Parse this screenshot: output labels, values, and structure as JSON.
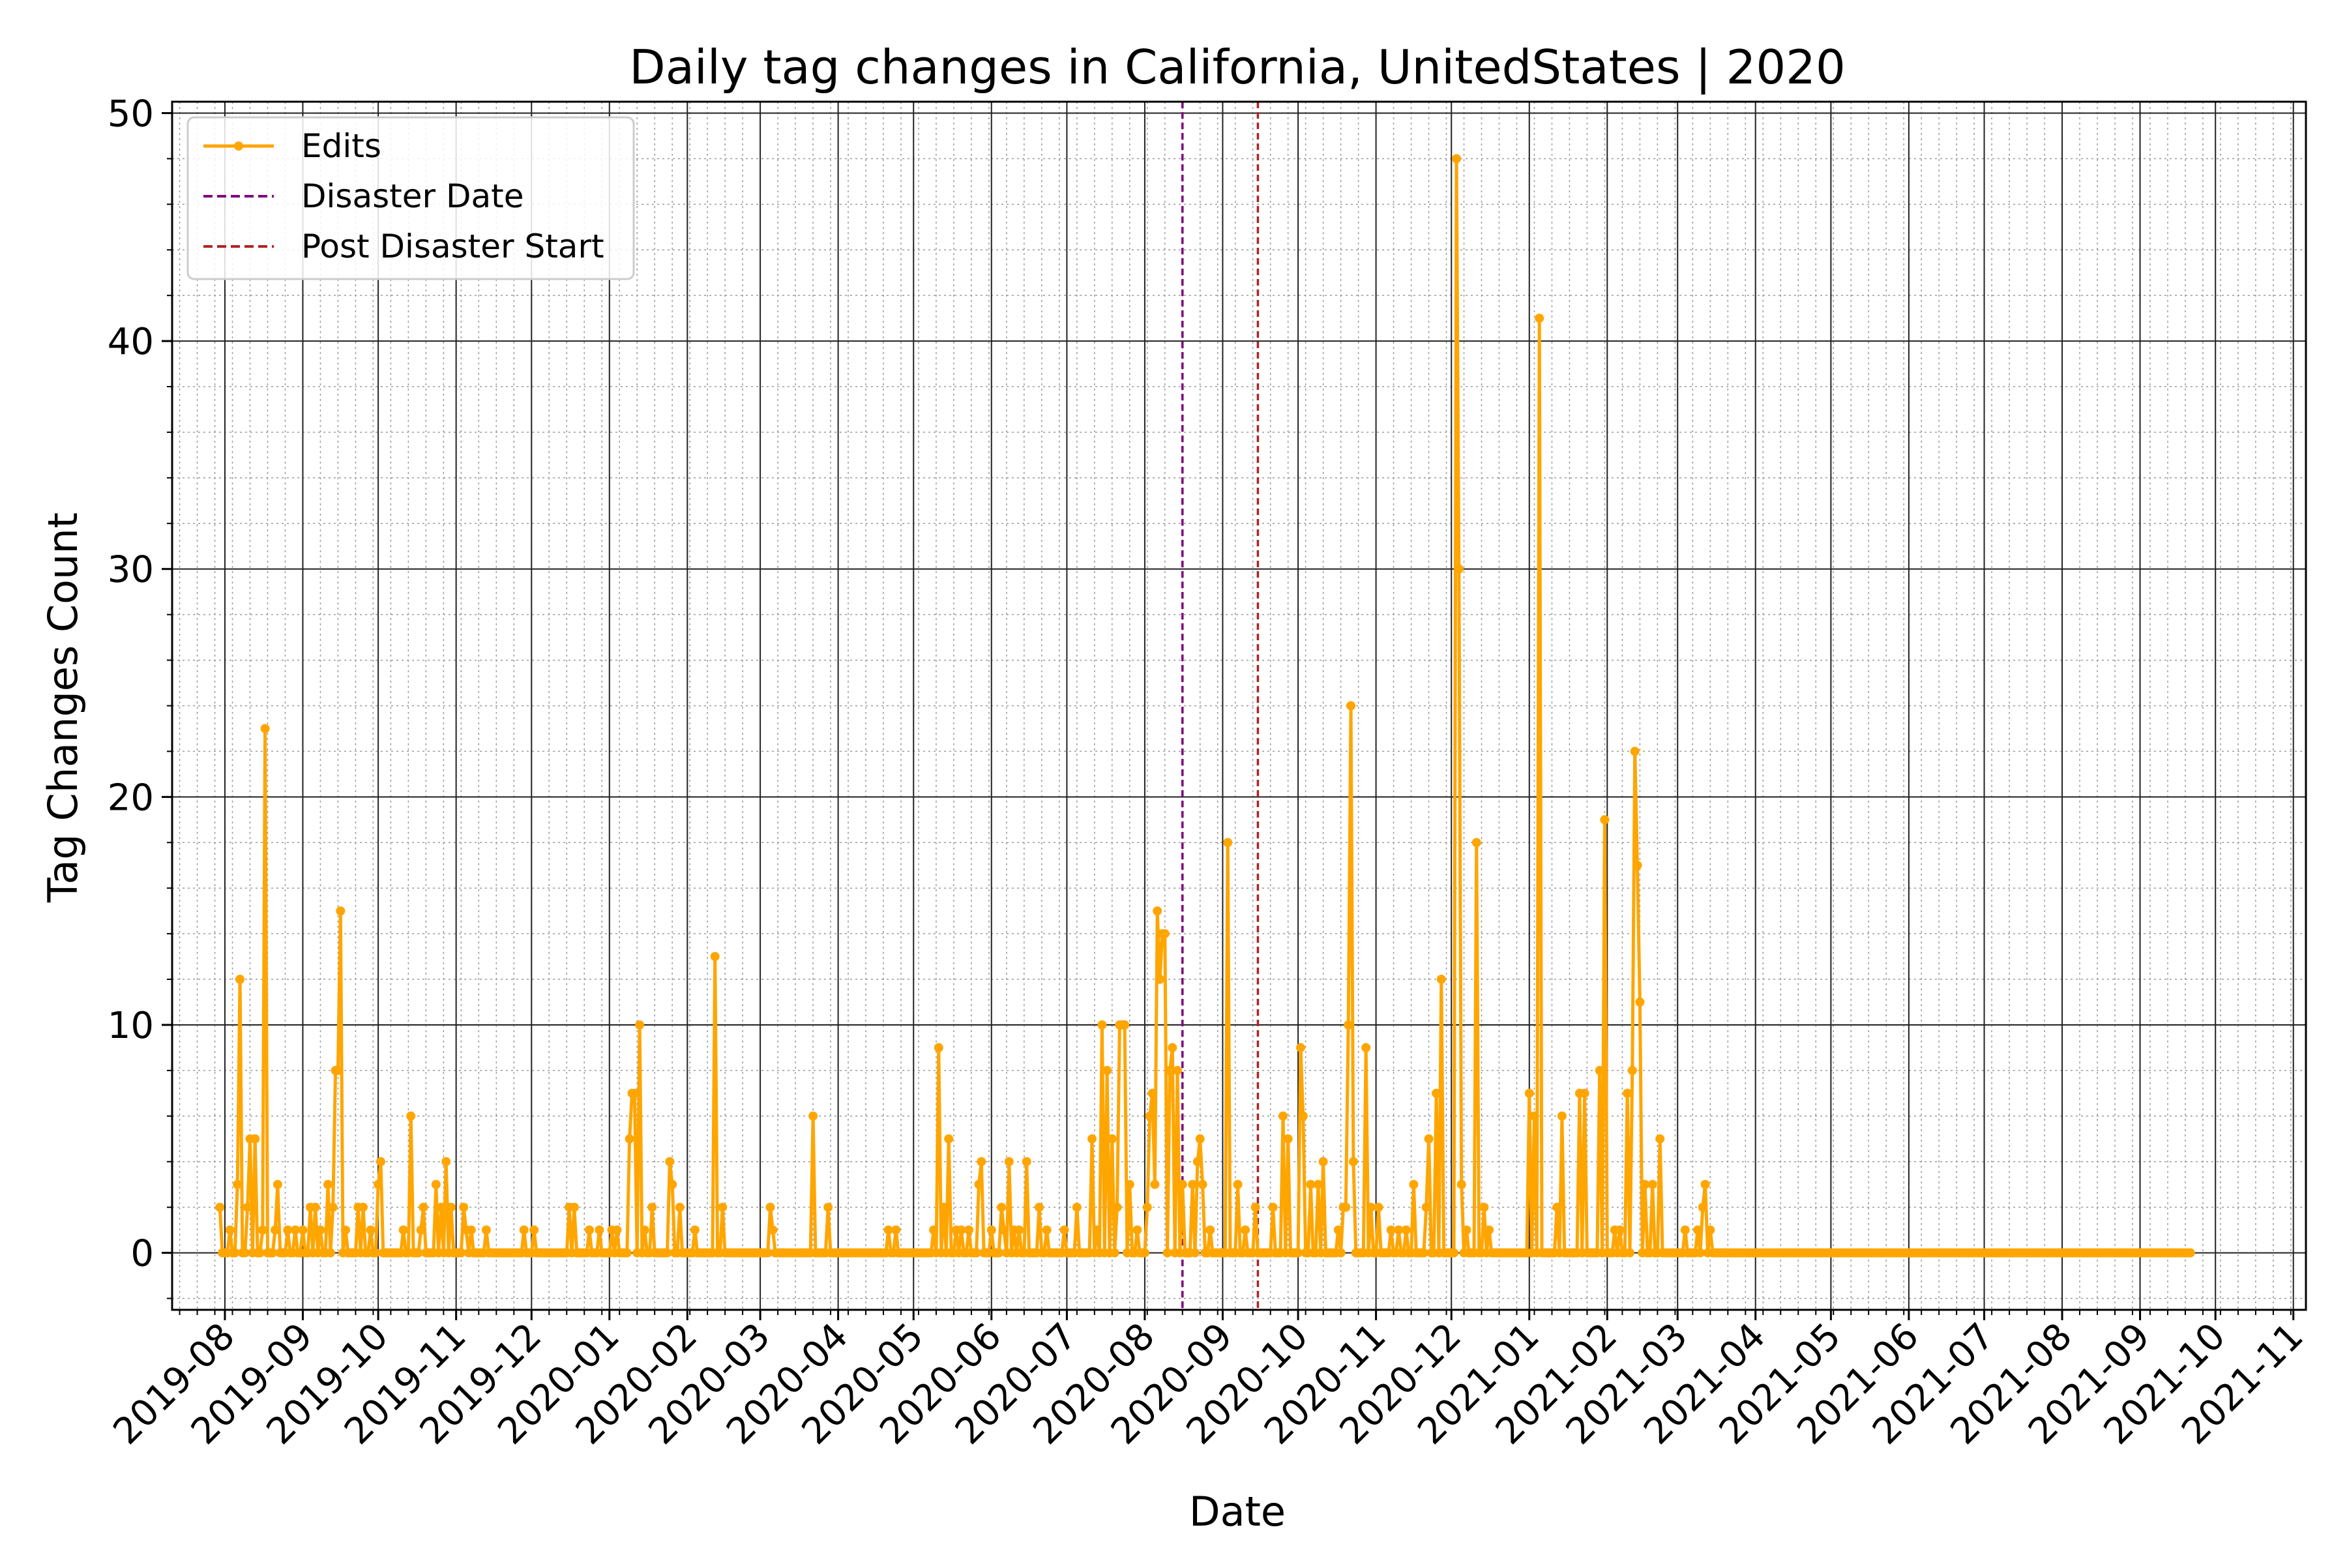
{
  "chart_data": {
    "type": "line",
    "title": "Daily tag changes in California, UnitedStates | 2020",
    "xlabel": "Date",
    "ylabel": "Tag Changes Count",
    "ylim": [
      -2.5,
      50.5
    ],
    "xlim": [
      "2019-07-11",
      "2021-11-06"
    ],
    "grid": true,
    "legend_position": "top-left",
    "y_ticks": [
      0,
      10,
      20,
      30,
      40,
      50
    ],
    "x_ticks": [
      "2019-08",
      "2019-09",
      "2019-10",
      "2019-11",
      "2019-12",
      "2020-01",
      "2020-02",
      "2020-03",
      "2020-04",
      "2020-05",
      "2020-06",
      "2020-07",
      "2020-08",
      "2020-09",
      "2020-10",
      "2020-11",
      "2020-12",
      "2021-01",
      "2021-02",
      "2021-03",
      "2021-04",
      "2021-05",
      "2021-06",
      "2021-07",
      "2021-08",
      "2021-09",
      "2021-10",
      "2021-11"
    ],
    "legend": [
      {
        "label": "Edits",
        "color": "#ffa500",
        "style": "line-marker"
      },
      {
        "label": "Disaster Date",
        "color": "#800080",
        "style": "dashed"
      },
      {
        "label": "Post Disaster Start",
        "color": "#b22222",
        "style": "dashed"
      }
    ],
    "vlines": [
      {
        "name": "Disaster Date",
        "x": "2020-08-16",
        "color": "#800080"
      },
      {
        "name": "Post Disaster Start",
        "x": "2020-09-15",
        "color": "#b22222"
      }
    ],
    "series": [
      {
        "name": "Edits",
        "color": "#ffa500",
        "start_date": "2019-07-30",
        "end_date": "2021-09-21",
        "nonzero_points": [
          [
            "2019-07-30",
            2
          ],
          [
            "2019-08-03",
            1
          ],
          [
            "2019-08-06",
            3
          ],
          [
            "2019-08-07",
            12
          ],
          [
            "2019-08-10",
            2
          ],
          [
            "2019-08-11",
            5
          ],
          [
            "2019-08-13",
            5
          ],
          [
            "2019-08-16",
            1
          ],
          [
            "2019-08-17",
            23
          ],
          [
            "2019-08-21",
            1
          ],
          [
            "2019-08-22",
            3
          ],
          [
            "2019-08-26",
            1
          ],
          [
            "2019-08-29",
            1
          ],
          [
            "2019-09-01",
            1
          ],
          [
            "2019-09-04",
            2
          ],
          [
            "2019-09-06",
            2
          ],
          [
            "2019-09-08",
            1
          ],
          [
            "2019-09-11",
            3
          ],
          [
            "2019-09-13",
            2
          ],
          [
            "2019-09-14",
            8
          ],
          [
            "2019-09-15",
            8
          ],
          [
            "2019-09-16",
            15
          ],
          [
            "2019-09-18",
            1
          ],
          [
            "2019-09-23",
            2
          ],
          [
            "2019-09-25",
            2
          ],
          [
            "2019-09-28",
            1
          ],
          [
            "2019-10-01",
            3
          ],
          [
            "2019-10-02",
            4
          ],
          [
            "2019-10-11",
            1
          ],
          [
            "2019-10-14",
            6
          ],
          [
            "2019-10-18",
            1
          ],
          [
            "2019-10-19",
            2
          ],
          [
            "2019-10-24",
            3
          ],
          [
            "2019-10-26",
            2
          ],
          [
            "2019-10-28",
            4
          ],
          [
            "2019-10-30",
            2
          ],
          [
            "2019-11-04",
            2
          ],
          [
            "2019-11-05",
            1
          ],
          [
            "2019-11-07",
            1
          ],
          [
            "2019-11-13",
            1
          ],
          [
            "2019-11-28",
            1
          ],
          [
            "2019-12-02",
            1
          ],
          [
            "2019-12-16",
            2
          ],
          [
            "2019-12-18",
            2
          ],
          [
            "2019-12-24",
            1
          ],
          [
            "2019-12-28",
            1
          ],
          [
            "2020-01-02",
            1
          ],
          [
            "2020-01-04",
            1
          ],
          [
            "2020-01-09",
            5
          ],
          [
            "2020-01-10",
            7
          ],
          [
            "2020-01-11",
            7
          ],
          [
            "2020-01-13",
            10
          ],
          [
            "2020-01-15",
            1
          ],
          [
            "2020-01-18",
            2
          ],
          [
            "2020-01-25",
            4
          ],
          [
            "2020-01-26",
            3
          ],
          [
            "2020-01-29",
            2
          ],
          [
            "2020-02-04",
            1
          ],
          [
            "2020-02-12",
            13
          ],
          [
            "2020-02-15",
            2
          ],
          [
            "2020-03-05",
            2
          ],
          [
            "2020-03-06",
            1
          ],
          [
            "2020-03-22",
            6
          ],
          [
            "2020-03-28",
            2
          ],
          [
            "2020-04-21",
            1
          ],
          [
            "2020-04-24",
            1
          ],
          [
            "2020-05-09",
            1
          ],
          [
            "2020-05-11",
            9
          ],
          [
            "2020-05-13",
            2
          ],
          [
            "2020-05-15",
            5
          ],
          [
            "2020-05-18",
            1
          ],
          [
            "2020-05-20",
            1
          ],
          [
            "2020-05-23",
            1
          ],
          [
            "2020-05-27",
            3
          ],
          [
            "2020-05-28",
            4
          ],
          [
            "2020-06-01",
            1
          ],
          [
            "2020-06-05",
            2
          ],
          [
            "2020-06-06",
            1
          ],
          [
            "2020-06-08",
            4
          ],
          [
            "2020-06-10",
            1
          ],
          [
            "2020-06-12",
            1
          ],
          [
            "2020-06-15",
            4
          ],
          [
            "2020-06-20",
            2
          ],
          [
            "2020-06-23",
            1
          ],
          [
            "2020-06-30",
            1
          ],
          [
            "2020-07-05",
            2
          ],
          [
            "2020-07-11",
            5
          ],
          [
            "2020-07-13",
            1
          ],
          [
            "2020-07-15",
            10
          ],
          [
            "2020-07-17",
            8
          ],
          [
            "2020-07-19",
            5
          ],
          [
            "2020-07-21",
            2
          ],
          [
            "2020-07-22",
            10
          ],
          [
            "2020-07-23",
            10
          ],
          [
            "2020-07-24",
            10
          ],
          [
            "2020-07-26",
            3
          ],
          [
            "2020-07-29",
            1
          ],
          [
            "2020-08-02",
            2
          ],
          [
            "2020-08-03",
            6
          ],
          [
            "2020-08-04",
            7
          ],
          [
            "2020-08-05",
            3
          ],
          [
            "2020-08-06",
            15
          ],
          [
            "2020-08-07",
            12
          ],
          [
            "2020-08-08",
            14
          ],
          [
            "2020-08-09",
            14
          ],
          [
            "2020-08-11",
            8
          ],
          [
            "2020-08-12",
            9
          ],
          [
            "2020-08-14",
            8
          ],
          [
            "2020-08-16",
            3
          ],
          [
            "2020-08-20",
            3
          ],
          [
            "2020-08-22",
            4
          ],
          [
            "2020-08-23",
            5
          ],
          [
            "2020-08-24",
            3
          ],
          [
            "2020-08-27",
            1
          ],
          [
            "2020-09-03",
            18
          ],
          [
            "2020-09-07",
            3
          ],
          [
            "2020-09-10",
            1
          ],
          [
            "2020-09-14",
            2
          ],
          [
            "2020-09-21",
            2
          ],
          [
            "2020-09-25",
            6
          ],
          [
            "2020-09-27",
            5
          ],
          [
            "2020-10-02",
            9
          ],
          [
            "2020-10-03",
            6
          ],
          [
            "2020-10-06",
            3
          ],
          [
            "2020-10-09",
            3
          ],
          [
            "2020-10-11",
            4
          ],
          [
            "2020-10-17",
            1
          ],
          [
            "2020-10-19",
            2
          ],
          [
            "2020-10-20",
            2
          ],
          [
            "2020-10-21",
            10
          ],
          [
            "2020-10-22",
            24
          ],
          [
            "2020-10-23",
            4
          ],
          [
            "2020-10-28",
            9
          ],
          [
            "2020-10-30",
            2
          ],
          [
            "2020-11-02",
            2
          ],
          [
            "2020-11-07",
            1
          ],
          [
            "2020-11-10",
            1
          ],
          [
            "2020-11-13",
            1
          ],
          [
            "2020-11-16",
            3
          ],
          [
            "2020-11-21",
            2
          ],
          [
            "2020-11-22",
            5
          ],
          [
            "2020-11-25",
            7
          ],
          [
            "2020-11-27",
            12
          ],
          [
            "2020-12-03",
            48
          ],
          [
            "2020-12-04",
            30
          ],
          [
            "2020-12-05",
            3
          ],
          [
            "2020-12-07",
            1
          ],
          [
            "2020-12-11",
            18
          ],
          [
            "2020-12-14",
            2
          ],
          [
            "2020-12-16",
            1
          ],
          [
            "2021-01-01",
            7
          ],
          [
            "2021-01-03",
            6
          ],
          [
            "2021-01-05",
            41
          ],
          [
            "2021-01-12",
            2
          ],
          [
            "2021-01-14",
            6
          ],
          [
            "2021-01-21",
            7
          ],
          [
            "2021-01-23",
            7
          ],
          [
            "2021-01-29",
            8
          ],
          [
            "2021-01-31",
            19
          ],
          [
            "2021-02-04",
            1
          ],
          [
            "2021-02-06",
            1
          ],
          [
            "2021-02-09",
            7
          ],
          [
            "2021-02-11",
            8
          ],
          [
            "2021-02-12",
            22
          ],
          [
            "2021-02-13",
            17
          ],
          [
            "2021-02-14",
            11
          ],
          [
            "2021-02-16",
            3
          ],
          [
            "2021-02-19",
            3
          ],
          [
            "2021-02-22",
            5
          ],
          [
            "2021-03-04",
            1
          ],
          [
            "2021-03-09",
            1
          ],
          [
            "2021-03-11",
            2
          ],
          [
            "2021-03-12",
            3
          ],
          [
            "2021-03-14",
            1
          ]
        ]
      }
    ]
  }
}
